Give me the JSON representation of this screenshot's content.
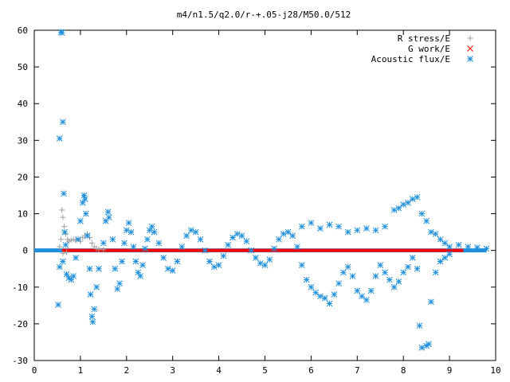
{
  "chart_data": {
    "type": "scatter",
    "title": "m4/n1.5/q2.0/r-+.05-j28/M50.0/512",
    "xlabel": "",
    "ylabel": "",
    "xlim": [
      0,
      10
    ],
    "ylim": [
      -30,
      60
    ],
    "xticks": [
      "0",
      "1",
      "2",
      "3",
      "4",
      "5",
      "6",
      "7",
      "8",
      "9",
      "10"
    ],
    "yticks": [
      "-30",
      "-20",
      "-10",
      "0",
      "10",
      "20",
      "30",
      "40",
      "50",
      "60"
    ],
    "grid": false,
    "legend_position": "top-right",
    "series": [
      {
        "name": "R stress/E",
        "marker": "plus",
        "color": "#a0a0a0",
        "points": [
          [
            0.55,
            1.0
          ],
          [
            0.58,
            3.0
          ],
          [
            0.6,
            11.0
          ],
          [
            0.62,
            9.0
          ],
          [
            0.65,
            6.5
          ],
          [
            0.68,
            4.5
          ],
          [
            0.72,
            3.0
          ],
          [
            0.75,
            2.5
          ],
          [
            0.8,
            2.8
          ],
          [
            0.85,
            3.0
          ],
          [
            0.9,
            2.7
          ],
          [
            0.95,
            3.2
          ],
          [
            1.0,
            2.5
          ],
          [
            1.05,
            3.5
          ],
          [
            1.1,
            4.0
          ],
          [
            1.15,
            4.5
          ],
          [
            1.2,
            3.5
          ],
          [
            1.25,
            2.0
          ],
          [
            1.3,
            1.0
          ],
          [
            1.35,
            0.5
          ],
          [
            1.4,
            0.3
          ],
          [
            1.5,
            0.2
          ],
          [
            0.62,
            -0.8
          ],
          [
            0.7,
            -0.5
          ]
        ]
      },
      {
        "name": "G work/E",
        "marker": "cross",
        "color": "#ff0000",
        "points": []
      },
      {
        "name": "Acoustic flux/E",
        "marker": "star",
        "color": "#1f8fdc",
        "points": [
          [
            0.52,
            -14.8
          ],
          [
            0.55,
            30.5
          ],
          [
            0.58,
            59.5
          ],
          [
            0.6,
            59.3
          ],
          [
            0.62,
            35.0
          ],
          [
            0.64,
            15.5
          ],
          [
            0.66,
            5.0
          ],
          [
            0.68,
            1.5
          ],
          [
            0.55,
            -4.5
          ],
          [
            0.62,
            -3.0
          ],
          [
            0.7,
            -6.5
          ],
          [
            0.75,
            -7.5
          ],
          [
            0.8,
            -8.0
          ],
          [
            0.85,
            -7.0
          ],
          [
            0.9,
            -2.0
          ],
          [
            0.95,
            3.0
          ],
          [
            1.0,
            8.0
          ],
          [
            1.05,
            13.0
          ],
          [
            1.08,
            15.0
          ],
          [
            1.1,
            14.0
          ],
          [
            1.12,
            10.0
          ],
          [
            1.15,
            4.0
          ],
          [
            1.2,
            -5.0
          ],
          [
            1.22,
            -12.0
          ],
          [
            1.25,
            -18.0
          ],
          [
            1.27,
            -19.5
          ],
          [
            1.3,
            -16.0
          ],
          [
            1.35,
            -10.0
          ],
          [
            1.4,
            -5.0
          ],
          [
            1.5,
            2.0
          ],
          [
            1.55,
            8.0
          ],
          [
            1.6,
            10.5
          ],
          [
            1.62,
            9.0
          ],
          [
            1.7,
            3.0
          ],
          [
            1.75,
            -5.0
          ],
          [
            1.8,
            -10.5
          ],
          [
            1.85,
            -9.0
          ],
          [
            1.9,
            -3.0
          ],
          [
            1.95,
            2.0
          ],
          [
            2.0,
            5.5
          ],
          [
            2.05,
            7.5
          ],
          [
            2.1,
            5.0
          ],
          [
            2.15,
            1.0
          ],
          [
            2.2,
            -3.0
          ],
          [
            2.25,
            -6.0
          ],
          [
            2.3,
            -7.0
          ],
          [
            2.35,
            -4.0
          ],
          [
            2.4,
            0.5
          ],
          [
            2.45,
            3.0
          ],
          [
            2.5,
            5.5
          ],
          [
            2.55,
            6.5
          ],
          [
            2.6,
            5.0
          ],
          [
            2.7,
            2.0
          ],
          [
            2.8,
            -2.0
          ],
          [
            2.9,
            -5.0
          ],
          [
            3.0,
            -5.5
          ],
          [
            3.1,
            -3.0
          ],
          [
            3.2,
            1.0
          ],
          [
            3.3,
            4.0
          ],
          [
            3.4,
            5.5
          ],
          [
            3.5,
            5.0
          ],
          [
            3.6,
            3.0
          ],
          [
            3.7,
            0.0
          ],
          [
            3.8,
            -3.0
          ],
          [
            3.9,
            -4.5
          ],
          [
            4.0,
            -4.0
          ],
          [
            4.1,
            -1.5
          ],
          [
            4.2,
            1.5
          ],
          [
            4.3,
            3.5
          ],
          [
            4.4,
            4.5
          ],
          [
            4.5,
            4.0
          ],
          [
            4.6,
            2.5
          ],
          [
            4.7,
            0.0
          ],
          [
            4.8,
            -2.0
          ],
          [
            4.9,
            -3.5
          ],
          [
            5.0,
            -4.0
          ],
          [
            5.1,
            -2.5
          ],
          [
            5.2,
            0.5
          ],
          [
            5.3,
            3.0
          ],
          [
            5.4,
            4.5
          ],
          [
            5.5,
            5.0
          ],
          [
            5.6,
            4.0
          ],
          [
            5.7,
            1.0
          ],
          [
            5.8,
            -4.0
          ],
          [
            5.9,
            -8.0
          ],
          [
            6.0,
            -10.0
          ],
          [
            6.1,
            -11.5
          ],
          [
            6.2,
            -12.5
          ],
          [
            6.3,
            -13.0
          ],
          [
            6.4,
            -14.5
          ],
          [
            6.5,
            -12.0
          ],
          [
            6.6,
            -9.0
          ],
          [
            6.7,
            -6.0
          ],
          [
            6.8,
            -4.5
          ],
          [
            6.9,
            -7.0
          ],
          [
            7.0,
            -11.0
          ],
          [
            7.1,
            -12.5
          ],
          [
            7.2,
            -13.5
          ],
          [
            7.3,
            -11.0
          ],
          [
            7.4,
            -7.0
          ],
          [
            7.5,
            -4.0
          ],
          [
            7.6,
            -6.0
          ],
          [
            7.7,
            -8.0
          ],
          [
            7.8,
            -10.0
          ],
          [
            7.9,
            -8.5
          ],
          [
            8.0,
            -6.0
          ],
          [
            8.1,
            -4.5
          ],
          [
            8.2,
            -2.0
          ],
          [
            8.3,
            -5.0
          ],
          [
            8.35,
            -20.5
          ],
          [
            8.4,
            -26.5
          ],
          [
            8.5,
            -26.0
          ],
          [
            8.55,
            -25.5
          ],
          [
            8.6,
            -14.0
          ],
          [
            8.7,
            -6.0
          ],
          [
            8.8,
            -3.0
          ],
          [
            8.9,
            -2.0
          ],
          [
            9.0,
            -1.0
          ],
          [
            5.8,
            6.5
          ],
          [
            6.0,
            7.5
          ],
          [
            6.2,
            6.0
          ],
          [
            6.4,
            7.0
          ],
          [
            6.6,
            6.5
          ],
          [
            6.8,
            5.0
          ],
          [
            7.0,
            5.5
          ],
          [
            7.2,
            6.0
          ],
          [
            7.4,
            5.5
          ],
          [
            7.6,
            6.5
          ],
          [
            7.8,
            11.0
          ],
          [
            7.9,
            11.5
          ],
          [
            8.0,
            12.5
          ],
          [
            8.1,
            13.0
          ],
          [
            8.2,
            14.0
          ],
          [
            8.3,
            14.5
          ],
          [
            8.4,
            10.0
          ],
          [
            8.5,
            8.0
          ],
          [
            8.6,
            5.0
          ],
          [
            8.7,
            4.5
          ],
          [
            8.8,
            3.0
          ],
          [
            8.9,
            2.0
          ],
          [
            9.0,
            1.0
          ],
          [
            9.2,
            1.5
          ],
          [
            9.4,
            1.0
          ],
          [
            9.6,
            0.8
          ],
          [
            9.8,
            0.5
          ]
        ]
      }
    ]
  },
  "colors": {
    "background": "#ffffff",
    "axes": "#000000",
    "r_stress": "#a0a0a0",
    "g_work": "#ff0000",
    "acoustic_flux": "#1f8fdc"
  }
}
